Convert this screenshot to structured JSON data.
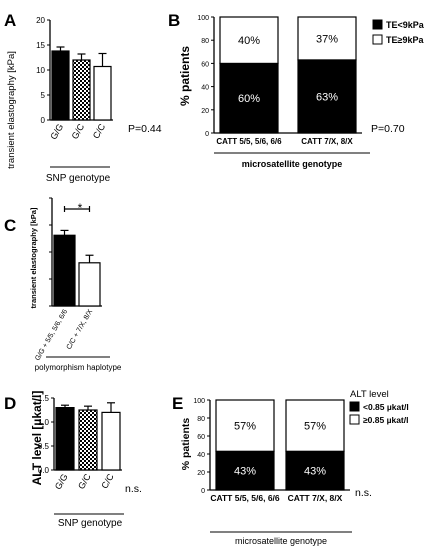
{
  "panels": {
    "A": {
      "letter": "A",
      "ylabel": "transient elastography [kPa]",
      "xlabel": "SNP genotype",
      "pvalue": "P=0.44"
    },
    "B": {
      "letter": "B",
      "ylabel": "% patients",
      "xlabel": "microsatellite genotype",
      "pvalue": "P=0.70"
    },
    "C": {
      "letter": "C",
      "ylabel": "transient elastography [kPa]",
      "xlabel": "polymorphism haplotype",
      "significance": "*"
    },
    "D": {
      "letter": "D",
      "ylabel": "ALT level [µkat/l]",
      "xlabel": "SNP genotype",
      "pvalue": "n.s."
    },
    "E": {
      "letter": "E",
      "ylabel": "% patients",
      "xlabel": "microsatellite genotype",
      "pvalue": "n.s.",
      "legend_title": "ALT level"
    }
  },
  "colors": {
    "black": "#000000",
    "white": "#ffffff",
    "checkered": "pattern-black-white"
  },
  "chart_data": [
    {
      "id": "A",
      "type": "bar",
      "error_bars": true,
      "categories": [
        "G/G",
        "G/C",
        "C/C"
      ],
      "fills": [
        "black",
        "checkered",
        "white"
      ],
      "values": [
        13.8,
        12.0,
        10.7
      ],
      "errors": [
        0.8,
        1.2,
        2.6
      ],
      "ylim": [
        0,
        20
      ],
      "yticks": [
        0,
        5,
        10,
        15,
        20
      ],
      "xlabel": "SNP genotype",
      "ylabel": "transient elastography [kPa]"
    },
    {
      "id": "B",
      "type": "bar",
      "stacked": true,
      "categories": [
        "CATT 5/5, 5/6, 6/6",
        "CATT 7/X, 8/X"
      ],
      "series": [
        {
          "name": "TE<9kPa",
          "color": "black",
          "values": [
            60,
            63
          ],
          "labels": [
            "60%",
            "63%"
          ]
        },
        {
          "name": "TE≥9kPa",
          "color": "white",
          "values": [
            40,
            37
          ],
          "labels": [
            "40%",
            "37%"
          ]
        }
      ],
      "ylim": [
        0,
        100
      ],
      "yticks": [
        0,
        20,
        40,
        60,
        80,
        100
      ],
      "xlabel": "microsatellite genotype",
      "ylabel": "% patients"
    },
    {
      "id": "C",
      "type": "bar",
      "error_bars": true,
      "categories": [
        "G/G + 5/5, 5/6, 6/6",
        "C/C + 7/X, 8/X"
      ],
      "fills": [
        "black",
        "white"
      ],
      "values": [
        13.1,
        8.0
      ],
      "errors": [
        0.9,
        1.4
      ],
      "ylim": [
        0,
        20
      ],
      "yticks": [
        0,
        5,
        10,
        15,
        20
      ],
      "xlabel": "polymorphism haplotype",
      "ylabel": "transient elastography [kPa]"
    },
    {
      "id": "D",
      "type": "bar",
      "error_bars": true,
      "categories": [
        "G/G",
        "G/C",
        "C/C"
      ],
      "fills": [
        "black",
        "checkered",
        "white"
      ],
      "values": [
        1.3,
        1.25,
        1.2
      ],
      "errors": [
        0.05,
        0.08,
        0.2
      ],
      "ylim": [
        0,
        1.5
      ],
      "yticks": [
        0.0,
        0.5,
        1.0,
        1.5
      ],
      "xlabel": "SNP genotype",
      "ylabel": "ALT level [µkat/l]"
    },
    {
      "id": "E",
      "type": "bar",
      "stacked": true,
      "categories": [
        "CATT 5/5, 5/6, 6/6",
        "CATT 7/X, 8/X"
      ],
      "series": [
        {
          "name": "<0.85 µkat/l",
          "color": "black",
          "values": [
            43,
            43
          ],
          "labels": [
            "43%",
            "43%"
          ]
        },
        {
          "name": "≥0.85 µkat/l",
          "color": "white",
          "values": [
            57,
            57
          ],
          "labels": [
            "57%",
            "57%"
          ]
        }
      ],
      "ylim": [
        0,
        100
      ],
      "yticks": [
        0,
        20,
        40,
        60,
        80,
        100
      ],
      "xlabel": "microsatellite genotype",
      "ylabel": "% patients"
    }
  ]
}
